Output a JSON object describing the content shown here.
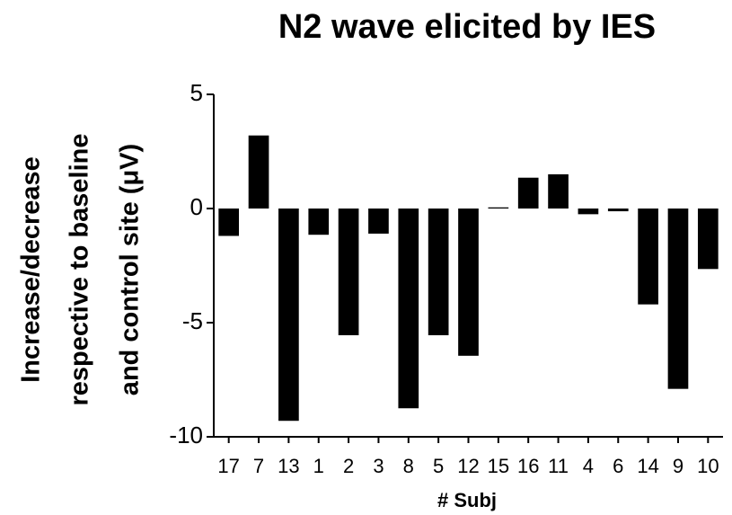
{
  "chart_data": {
    "type": "bar",
    "title": "N2 wave elicited by IES",
    "ylabel": [
      "Increase/decrease",
      "respective to baseline",
      "and control site  (μV)"
    ],
    "xlabel": "# Subj",
    "categories": [
      "17",
      "7",
      "13",
      "1",
      "2",
      "3",
      "8",
      "5",
      "12",
      "15",
      "16",
      "11",
      "4",
      "6",
      "14",
      "9",
      "10"
    ],
    "values": [
      -1.2,
      3.2,
      -9.3,
      -1.15,
      -5.55,
      -1.1,
      -8.75,
      -5.55,
      -6.45,
      0.05,
      1.35,
      1.5,
      -0.25,
      -0.12,
      -4.2,
      -7.9,
      -2.65
    ],
    "color": "#000000",
    "ylim": [
      -10,
      5
    ],
    "yticks": [
      5,
      0,
      -5,
      -10
    ],
    "grid": false
  }
}
